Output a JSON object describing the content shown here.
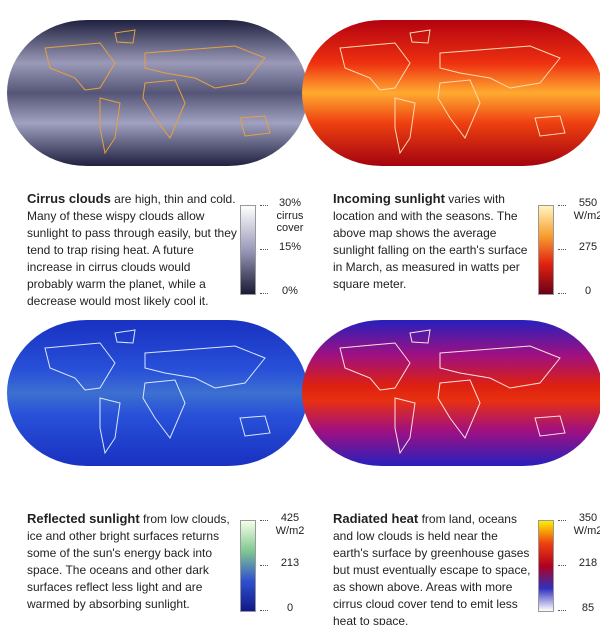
{
  "panels": [
    {
      "title": "Cirrus clouds",
      "text": "are high, thin and cold. Many of these wispy clouds allow sunlight to pass through easily, but they tend to trap rising heat. A future increase in cirrus clouds would probably warm the planet, while a decrease would most likely cool it.",
      "scale": {
        "ticks": [
          "30%",
          "15%",
          "0%"
        ],
        "unit": "cirrus cover"
      }
    },
    {
      "title": "Incoming sunlight",
      "text": "varies with location and with the seasons. The above map shows the average sunlight falling on the earth's surface in March, as measured in watts per square meter.",
      "scale": {
        "ticks": [
          "550",
          "275",
          "0"
        ],
        "unit": "W/m2"
      }
    },
    {
      "title": "Reflected sunlight",
      "text": "from low clouds, ice and other bright surfaces returns some of the sun's energy back into space. The oceans and other dark surfaces reflect less light and are warmed by absorbing sunlight.",
      "scale": {
        "ticks": [
          "425",
          "213",
          "0"
        ],
        "unit": "W/m2"
      }
    },
    {
      "title": "Radiated heat",
      "text": "from land, oceans and low clouds is held near the earth's surface by greenhouse gases but must eventually escape to space, as shown above. Areas with more cirrus cloud cover tend to emit less heat to space.",
      "scale": {
        "ticks": [
          "350",
          "218",
          "85"
        ],
        "unit": "W/m2"
      }
    }
  ]
}
